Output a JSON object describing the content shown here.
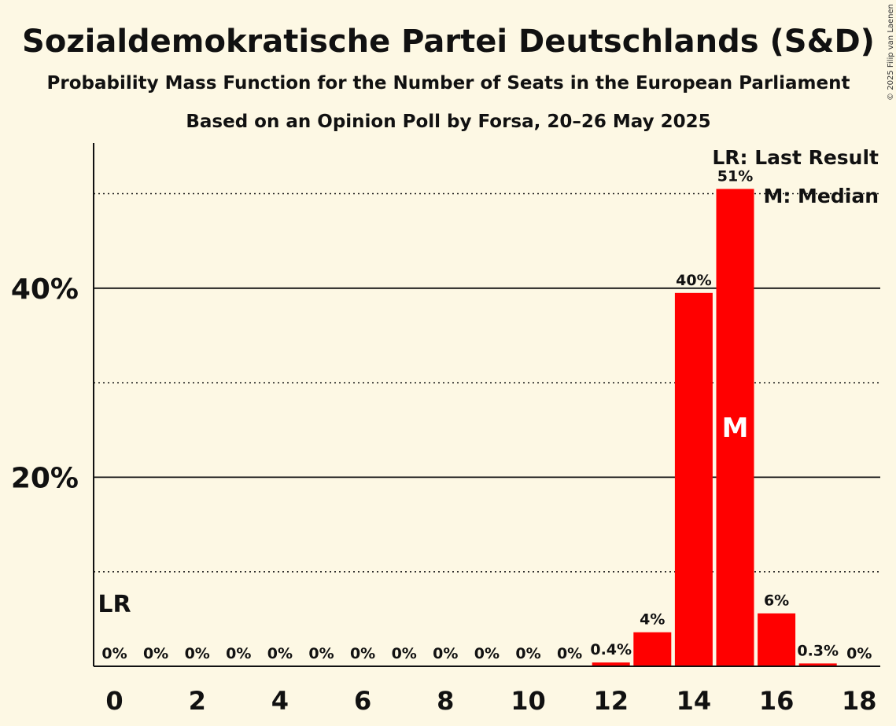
{
  "title": "Sozialdemokratische Partei Deutschlands (S&D)",
  "subtitle": "Probability Mass Function for the Number of Seats in the European Parliament",
  "subtitle2": "Based on an Opinion Poll by Forsa, 20–26 May 2025",
  "copyright": "© 2025 Filip van Laenen",
  "legend": {
    "last_result": "LR: Last Result",
    "median": "M: Median"
  },
  "markers": {
    "last_result_label": "LR",
    "last_result_seat": 0,
    "median_label": "M",
    "median_seat": 15
  },
  "colors": {
    "background": "#fdf8e4",
    "bar": "#ff0000",
    "text": "#111111"
  },
  "chart_data": {
    "type": "bar",
    "categories": [
      0,
      1,
      2,
      3,
      4,
      5,
      6,
      7,
      8,
      9,
      10,
      11,
      12,
      13,
      14,
      15,
      16,
      17,
      18
    ],
    "values": [
      0,
      0,
      0,
      0,
      0,
      0,
      0,
      0,
      0,
      0,
      0,
      0,
      0.4,
      3.6,
      39.5,
      50.5,
      5.6,
      0.3,
      0
    ],
    "data_labels": [
      "0%",
      "0%",
      "0%",
      "0%",
      "0%",
      "0%",
      "0%",
      "0%",
      "0%",
      "0%",
      "0%",
      "0%",
      "0.4%",
      "4%",
      "40%",
      "51%",
      "6%",
      "0.3%",
      "0%"
    ],
    "x_tick_labels": [
      "0",
      "2",
      "4",
      "6",
      "8",
      "10",
      "12",
      "14",
      "16",
      "18"
    ],
    "x_tick_values": [
      0,
      2,
      4,
      6,
      8,
      10,
      12,
      14,
      16,
      18
    ],
    "y_tick_labels": [
      "20%",
      "40%"
    ],
    "y_tick_values": [
      20,
      40
    ],
    "y_solid_grid": [
      20,
      40
    ],
    "y_dotted_grid": [
      10,
      30,
      50
    ],
    "ylim": [
      0,
      55
    ],
    "xlabel": "",
    "ylabel": "",
    "grid": true,
    "legend_position": "top-right"
  }
}
